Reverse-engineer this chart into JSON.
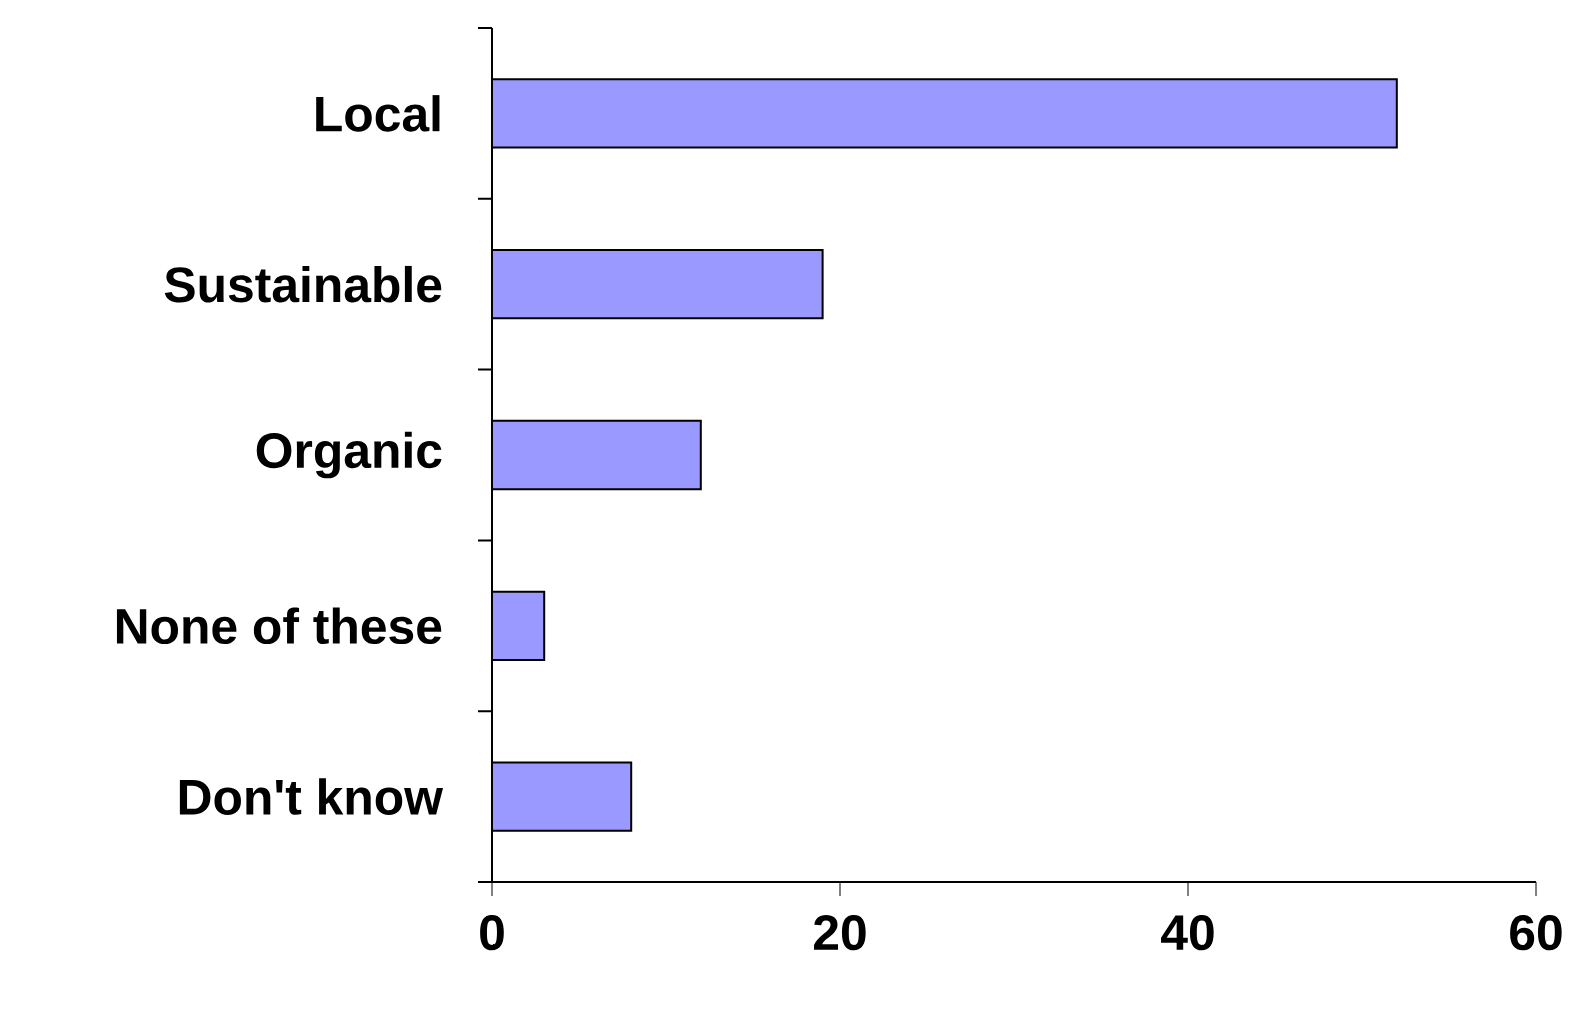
{
  "chart_data": {
    "type": "bar",
    "orientation": "horizontal",
    "categories": [
      "Local",
      "Sustainable",
      "Organic",
      "None of these",
      "Don't know"
    ],
    "values": [
      52,
      19,
      12,
      3,
      8
    ],
    "color": "#9999ff",
    "xlim": [
      0,
      60
    ],
    "xticks": [
      0,
      20,
      40,
      60
    ]
  }
}
